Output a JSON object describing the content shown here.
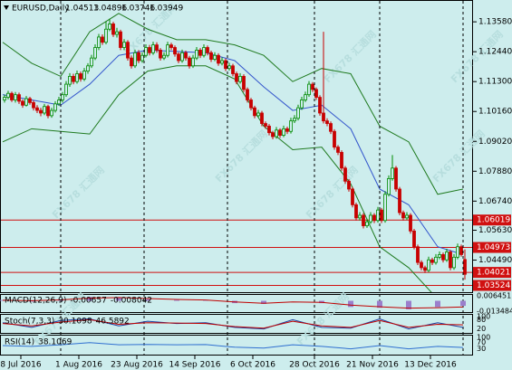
{
  "chart_data": {
    "type": "candlestick",
    "symbol": "EURUSD,Daily",
    "ohlc_header": [
      1.04513,
      1.04896,
      1.03746,
      1.03949
    ],
    "watermark": "FX678 汇通网",
    "colors": {
      "background": "#cdeded",
      "up": "#008a00",
      "down": "#c80000",
      "band": "#1f7a1f",
      "middle": "#3355cc",
      "level": "#d01010"
    },
    "ylim": [
      1.033,
      1.1424
    ],
    "yticks": [
      {
        "value": 1.1358,
        "label": "1.13580"
      },
      {
        "value": 1.1244,
        "label": "1.12440"
      },
      {
        "value": 1.113,
        "label": "1.11300"
      },
      {
        "value": 1.1016,
        "label": "1.10160"
      },
      {
        "value": 1.0902,
        "label": "1.09020"
      },
      {
        "value": 1.0788,
        "label": "1.07880"
      },
      {
        "value": 1.0674,
        "label": "1.06740"
      },
      {
        "value": 1.0563,
        "label": "1.05630"
      },
      {
        "value": 1.0449,
        "label": "1.04490"
      }
    ],
    "levels": [
      1.06019,
      1.04973,
      1.04021,
      1.03524
    ],
    "xlim": [
      0,
      128
    ],
    "xticks": [
      {
        "value": 5,
        "label": "8 Jul 2016"
      },
      {
        "value": 21,
        "label": "1 Aug 2016"
      },
      {
        "value": 37,
        "label": "23 Aug 2016"
      },
      {
        "value": 53,
        "label": "14 Sep 2016"
      },
      {
        "value": 69,
        "label": "6 Oct 2016"
      },
      {
        "value": 86,
        "label": "28 Oct 2016"
      },
      {
        "value": 102,
        "label": "21 Nov 2016"
      },
      {
        "value": 118,
        "label": "13 Dec 2016"
      }
    ],
    "period_separators": [
      16,
      39,
      62,
      86,
      104,
      127
    ],
    "ohlc": [
      [
        1.106,
        1.108,
        1.105,
        1.107
      ],
      [
        1.107,
        1.1095,
        1.1062,
        1.1085
      ],
      [
        1.1085,
        1.1092,
        1.1052,
        1.106
      ],
      [
        1.106,
        1.109,
        1.105,
        1.108
      ],
      [
        1.108,
        1.1088,
        1.1045,
        1.1055
      ],
      [
        1.1055,
        1.1062,
        1.103,
        1.104
      ],
      [
        1.104,
        1.1075,
        1.1035,
        1.1065
      ],
      [
        1.1065,
        1.1072,
        1.1042,
        1.105
      ],
      [
        1.105,
        1.1058,
        1.102,
        1.103
      ],
      [
        1.103,
        1.104,
        1.101,
        1.102
      ],
      [
        1.102,
        1.103,
        1.0998,
        1.101
      ],
      [
        1.101,
        1.1045,
        1.1002,
        1.1035
      ],
      [
        1.1035,
        1.1042,
        1.099,
        1.1
      ],
      [
        1.1,
        1.103,
        1.0992,
        1.102
      ],
      [
        1.102,
        1.1055,
        1.1012,
        1.1045
      ],
      [
        1.1045,
        1.1072,
        1.1038,
        1.106
      ],
      [
        1.106,
        1.109,
        1.105,
        1.108
      ],
      [
        1.108,
        1.1132,
        1.1072,
        1.112
      ],
      [
        1.112,
        1.1162,
        1.111,
        1.115
      ],
      [
        1.115,
        1.116,
        1.112,
        1.113
      ],
      [
        1.113,
        1.1172,
        1.1122,
        1.116
      ],
      [
        1.116,
        1.1168,
        1.113,
        1.114
      ],
      [
        1.114,
        1.1182,
        1.1132,
        1.117
      ],
      [
        1.117,
        1.12,
        1.116,
        1.119
      ],
      [
        1.119,
        1.1232,
        1.1182,
        1.122
      ],
      [
        1.122,
        1.1272,
        1.1212,
        1.126
      ],
      [
        1.126,
        1.1312,
        1.125,
        1.13
      ],
      [
        1.13,
        1.131,
        1.127,
        1.128
      ],
      [
        1.128,
        1.136,
        1.1272,
        1.133
      ],
      [
        1.133,
        1.137,
        1.1322,
        1.135
      ],
      [
        1.135,
        1.1358,
        1.13,
        1.131
      ],
      [
        1.131,
        1.1335,
        1.1298,
        1.132
      ],
      [
        1.132,
        1.1328,
        1.125,
        1.126
      ],
      [
        1.126,
        1.1292,
        1.125,
        1.128
      ],
      [
        1.128,
        1.1288,
        1.121,
        1.122
      ],
      [
        1.122,
        1.123,
        1.118,
        1.119
      ],
      [
        1.119,
        1.1252,
        1.1182,
        1.124
      ],
      [
        1.124,
        1.125,
        1.12,
        1.121
      ],
      [
        1.121,
        1.1242,
        1.1202,
        1.123
      ],
      [
        1.123,
        1.1272,
        1.1222,
        1.126
      ],
      [
        1.126,
        1.127,
        1.123,
        1.124
      ],
      [
        1.124,
        1.1282,
        1.1232,
        1.127
      ],
      [
        1.127,
        1.128,
        1.124,
        1.125
      ],
      [
        1.125,
        1.1258,
        1.121,
        1.122
      ],
      [
        1.122,
        1.1242,
        1.1212,
        1.123
      ],
      [
        1.123,
        1.1282,
        1.1222,
        1.127
      ],
      [
        1.127,
        1.1278,
        1.125,
        1.126
      ],
      [
        1.126,
        1.1268,
        1.1225,
        1.1235
      ],
      [
        1.1235,
        1.1242,
        1.12,
        1.121
      ],
      [
        1.121,
        1.1252,
        1.1202,
        1.124
      ],
      [
        1.124,
        1.1248,
        1.121,
        1.122
      ],
      [
        1.122,
        1.1228,
        1.118,
        1.119
      ],
      [
        1.119,
        1.1232,
        1.1182,
        1.122
      ],
      [
        1.122,
        1.1262,
        1.1212,
        1.125
      ],
      [
        1.125,
        1.1258,
        1.122,
        1.123
      ],
      [
        1.123,
        1.1272,
        1.1222,
        1.126
      ],
      [
        1.126,
        1.1268,
        1.123,
        1.124
      ],
      [
        1.124,
        1.1248,
        1.1205,
        1.1215
      ],
      [
        1.1215,
        1.1242,
        1.1208,
        1.123
      ],
      [
        1.123,
        1.1238,
        1.119,
        1.12
      ],
      [
        1.12,
        1.1222,
        1.1192,
        1.121
      ],
      [
        1.121,
        1.1218,
        1.117,
        1.118
      ],
      [
        1.118,
        1.1202,
        1.1172,
        1.119
      ],
      [
        1.119,
        1.1198,
        1.115,
        1.116
      ],
      [
        1.116,
        1.1168,
        1.112,
        1.113
      ],
      [
        1.113,
        1.1162,
        1.1122,
        1.115
      ],
      [
        1.115,
        1.1158,
        1.109,
        1.11
      ],
      [
        1.11,
        1.1108,
        1.105,
        1.106
      ],
      [
        1.106,
        1.1068,
        1.102,
        1.103
      ],
      [
        1.103,
        1.1038,
        1.099,
        1.1
      ],
      [
        1.1,
        1.1022,
        1.0992,
        1.101
      ],
      [
        1.101,
        1.1018,
        1.096,
        1.097
      ],
      [
        1.097,
        1.0978,
        1.095,
        1.096
      ],
      [
        1.096,
        1.0968,
        1.0925,
        1.0935
      ],
      [
        1.0935,
        1.0942,
        1.091,
        1.092
      ],
      [
        1.092,
        1.0957,
        1.0912,
        1.0945
      ],
      [
        1.0945,
        1.0952,
        1.0915,
        1.0925
      ],
      [
        1.0925,
        1.0962,
        1.0918,
        1.095
      ],
      [
        1.095,
        1.0958,
        1.093,
        1.094
      ],
      [
        1.094,
        1.0992,
        1.0932,
        1.098
      ],
      [
        1.098,
        1.1002,
        1.0972,
        1.099
      ],
      [
        1.099,
        1.1042,
        1.0982,
        1.103
      ],
      [
        1.103,
        1.1072,
        1.1022,
        1.106
      ],
      [
        1.106,
        1.1092,
        1.1052,
        1.108
      ],
      [
        1.108,
        1.1132,
        1.1072,
        1.112
      ],
      [
        1.112,
        1.1128,
        1.109,
        1.11
      ],
      [
        1.11,
        1.1108,
        1.106,
        1.107
      ],
      [
        1.107,
        1.1078,
        1.1,
        1.101
      ],
      [
        1.101,
        1.132,
        1.097,
        1.098
      ],
      [
        1.098,
        1.099,
        1.096,
        1.097
      ],
      [
        1.097,
        1.0978,
        1.093,
        1.094
      ],
      [
        1.094,
        1.0948,
        1.087,
        1.088
      ],
      [
        1.088,
        1.0888,
        1.085,
        1.086
      ],
      [
        1.086,
        1.0868,
        1.079,
        1.08
      ],
      [
        1.08,
        1.0808,
        1.074,
        1.075
      ],
      [
        1.075,
        1.0758,
        1.071,
        1.072
      ],
      [
        1.072,
        1.0728,
        1.065,
        1.066
      ],
      [
        1.066,
        1.0668,
        1.06,
        1.061
      ],
      [
        1.061,
        1.0632,
        1.06,
        1.062
      ],
      [
        1.062,
        1.0628,
        1.057,
        1.058
      ],
      [
        1.058,
        1.0607,
        1.0572,
        1.0595
      ],
      [
        1.0595,
        1.0632,
        1.0587,
        1.062
      ],
      [
        1.062,
        1.0628,
        1.059,
        1.06
      ],
      [
        1.06,
        1.0652,
        1.0592,
        1.064
      ],
      [
        1.064,
        1.0648,
        1.059,
        1.06
      ],
      [
        1.06,
        1.0712,
        1.0592,
        1.07
      ],
      [
        1.07,
        1.0772,
        1.0692,
        1.076
      ],
      [
        1.076,
        1.085,
        1.0752,
        1.08
      ],
      [
        1.08,
        1.0808,
        1.071,
        1.072
      ],
      [
        1.072,
        1.0728,
        1.062,
        1.063
      ],
      [
        1.063,
        1.0638,
        1.06,
        1.061
      ],
      [
        1.061,
        1.0632,
        1.0602,
        1.062
      ],
      [
        1.062,
        1.0628,
        1.055,
        1.056
      ],
      [
        1.056,
        1.0568,
        1.049,
        1.05
      ],
      [
        1.05,
        1.0508,
        1.043,
        1.044
      ],
      [
        1.044,
        1.0448,
        1.041,
        1.042
      ],
      [
        1.042,
        1.0428,
        1.04,
        1.041
      ],
      [
        1.041,
        1.0462,
        1.0402,
        1.045
      ],
      [
        1.045,
        1.0458,
        1.043,
        1.044
      ],
      [
        1.044,
        1.0472,
        1.0432,
        1.046
      ],
      [
        1.046,
        1.0482,
        1.0452,
        1.047
      ],
      [
        1.047,
        1.0478,
        1.044,
        1.045
      ],
      [
        1.045,
        1.0492,
        1.0442,
        1.048
      ],
      [
        1.048,
        1.0488,
        1.041,
        1.042
      ],
      [
        1.042,
        1.0472,
        1.0412,
        1.046
      ],
      [
        1.046,
        1.0512,
        1.0452,
        1.05
      ],
      [
        1.05,
        1.0508,
        1.0462,
        1.047
      ],
      [
        1.04513,
        1.04896,
        1.03746,
        1.03949
      ]
    ],
    "bands": {
      "x": [
        0,
        8,
        16,
        24,
        32,
        40,
        48,
        56,
        64,
        72,
        80,
        88,
        96,
        104,
        112,
        120,
        127
      ],
      "upper": [
        1.128,
        1.12,
        1.115,
        1.132,
        1.139,
        1.133,
        1.129,
        1.129,
        1.127,
        1.123,
        1.113,
        1.118,
        1.116,
        1.096,
        1.09,
        1.07,
        1.072
      ],
      "middle": [
        1.108,
        1.106,
        1.104,
        1.112,
        1.123,
        1.125,
        1.1245,
        1.124,
        1.121,
        1.111,
        1.102,
        1.104,
        1.095,
        1.072,
        1.066,
        1.05,
        1.047
      ],
      "lower": [
        1.09,
        1.095,
        1.094,
        1.093,
        1.108,
        1.117,
        1.119,
        1.119,
        1.114,
        1.096,
        1.087,
        1.088,
        1.074,
        1.05,
        1.042,
        1.03,
        1.027
      ]
    },
    "macd": {
      "label": "MACD(12,26,9)",
      "main_last": -0.00657,
      "signal_last": -0.008042,
      "ylim": [
        -0.013484,
        0.006451
      ],
      "yticks": [
        0.006451,
        -0.013484
      ],
      "main": [
        0.001,
        -0.001,
        0.002,
        0.005,
        0.004,
        0.002,
        0.001,
        0.0005,
        -0.003,
        -0.004,
        0,
        -0.003,
        -0.008,
        -0.009,
        -0.011,
        -0.008,
        -0.00657
      ],
      "signal": [
        0.0008,
        0.0002,
        0.0012,
        0.0035,
        0.0042,
        0.003,
        0.0018,
        0.001,
        -0.0015,
        -0.0032,
        -0.0015,
        -0.002,
        -0.0055,
        -0.0078,
        -0.0095,
        -0.009,
        -0.008042
      ]
    },
    "stoch": {
      "label": "Stoch(7,3,3)",
      "main_last": 30.1098,
      "signal_last": 46.5892,
      "ylim": [
        0,
        100
      ],
      "yticks": [
        100,
        80,
        20
      ],
      "main": [
        60,
        30,
        75,
        85,
        40,
        70,
        55,
        60,
        30,
        20,
        80,
        30,
        25,
        85,
        20,
        60,
        30.1098
      ],
      "signal": [
        55,
        40,
        65,
        80,
        50,
        60,
        58,
        55,
        35,
        25,
        70,
        40,
        30,
        75,
        30,
        50,
        46.5892
      ]
    },
    "rsi": {
      "label": "RSI(14)",
      "last": 38.1069,
      "ylim": [
        0,
        100
      ],
      "yticks": [
        100,
        70,
        30
      ],
      "values": [
        50,
        45,
        55,
        68,
        55,
        57,
        55,
        56,
        40,
        35,
        55,
        45,
        30,
        50,
        30,
        45,
        38.1069
      ]
    }
  }
}
